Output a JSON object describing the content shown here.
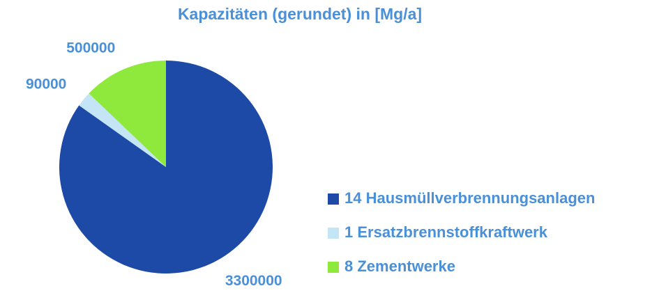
{
  "chart_data": {
    "type": "pie",
    "title": "Kapazitäten  (gerundet) in [Mg/a]",
    "categories": [
      "14 Hausmüllverbrennungsanlagen",
      "1 Ersatzbrennstoffkraftwerk",
      "8 Zementwerke"
    ],
    "values": [
      3300000,
      90000,
      500000
    ],
    "colors": [
      "#1c4aa6",
      "#c3e5f6",
      "#8fe83c"
    ],
    "legend": "right"
  }
}
